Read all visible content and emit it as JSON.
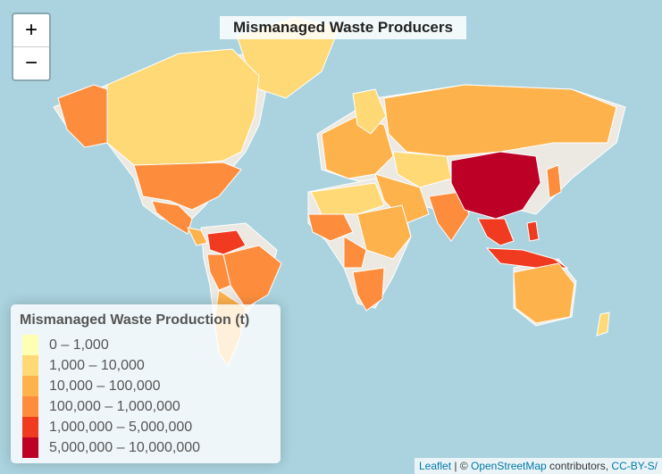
{
  "title": "Mismanaged Waste Producers",
  "zoom": {
    "in_label": "+",
    "out_label": "−"
  },
  "legend": {
    "title": "Mismanaged Waste Production (t)",
    "items": [
      {
        "label": "0 – 1,000",
        "color": "#ffffb2"
      },
      {
        "label": "1,000 – 10,000",
        "color": "#fed976"
      },
      {
        "label": "10,000 – 100,000",
        "color": "#feb24c"
      },
      {
        "label": "100,000 – 1,000,000",
        "color": "#fd8d3c"
      },
      {
        "label": "1,000,000 – 5,000,000",
        "color": "#f03b20"
      },
      {
        "label": "5,000,000 – 10,000,000",
        "color": "#bd0026"
      }
    ]
  },
  "attribution": {
    "leaflet": "Leaflet",
    "separator": " | © ",
    "osm": "OpenStreetMap",
    "contributors": " contributors, ",
    "license": "CC-BY-S/"
  },
  "colors": {
    "water": "#aad3df",
    "land": "#f2efe9",
    "no_data": "#e8e6e1"
  },
  "regions": [
    {
      "name": "Canada",
      "class": "1,000 – 10,000"
    },
    {
      "name": "Greenland",
      "class": "1,000 – 10,000"
    },
    {
      "name": "Alaska",
      "class": "100,000 – 1,000,000"
    },
    {
      "name": "United States",
      "class": "100,000 – 1,000,000"
    },
    {
      "name": "Mexico",
      "class": "100,000 – 1,000,000"
    },
    {
      "name": "Brazil",
      "class": "100,000 – 1,000,000"
    },
    {
      "name": "Argentina",
      "class": "10,000 – 100,000"
    },
    {
      "name": "Russia",
      "class": "10,000 – 100,000"
    },
    {
      "name": "China",
      "class": "5,000,000 – 10,000,000"
    },
    {
      "name": "India",
      "class": "100,000 – 1,000,000"
    },
    {
      "name": "Australia",
      "class": "10,000 – 100,000"
    },
    {
      "name": "Indonesia",
      "class": "1,000,000 – 5,000,000"
    },
    {
      "name": "Africa",
      "class": "10,000 – 100,000"
    },
    {
      "name": "Europe",
      "class": "10,000 – 100,000"
    }
  ]
}
